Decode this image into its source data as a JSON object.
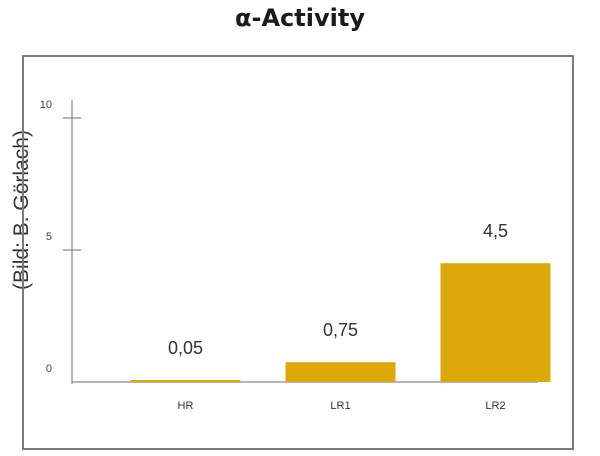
{
  "credit": "(Bild: B. Görlach)",
  "chart_data": {
    "type": "bar",
    "title": "α-Activity",
    "categories": [
      "HR",
      "LR1",
      "LR2"
    ],
    "values": [
      0.05,
      0.75,
      4.5
    ],
    "data_labels": [
      "0,05",
      "0,75",
      "4,5"
    ],
    "ylim": [
      0,
      10
    ],
    "yticks": [
      0,
      5,
      10
    ],
    "ytick_labels": [
      "0",
      "5",
      "10"
    ],
    "xlabel": "",
    "ylabel": "",
    "grid": false,
    "legend": "none",
    "bar_color": "#DDA80A"
  }
}
